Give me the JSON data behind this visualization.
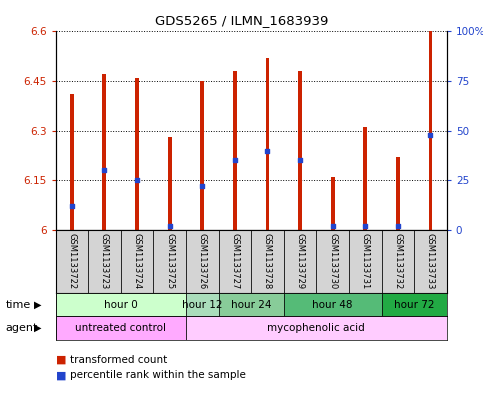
{
  "title": "GDS5265 / ILMN_1683939",
  "samples": [
    "GSM1133722",
    "GSM1133723",
    "GSM1133724",
    "GSM1133725",
    "GSM1133726",
    "GSM1133727",
    "GSM1133728",
    "GSM1133729",
    "GSM1133730",
    "GSM1133731",
    "GSM1133732",
    "GSM1133733"
  ],
  "transformed_counts": [
    6.41,
    6.47,
    6.46,
    6.28,
    6.45,
    6.48,
    6.52,
    6.48,
    6.16,
    6.31,
    6.22,
    6.6
  ],
  "percentile_ranks": [
    12,
    30,
    25,
    2,
    22,
    35,
    40,
    35,
    2,
    2,
    2,
    48
  ],
  "ylim": [
    6.0,
    6.6
  ],
  "yticks": [
    6.0,
    6.15,
    6.3,
    6.45,
    6.6
  ],
  "ytick_labels": [
    "6",
    "6.15",
    "6.3",
    "6.45",
    "6.6"
  ],
  "y2ticks": [
    0,
    25,
    50,
    75,
    100
  ],
  "y2tick_labels": [
    "0",
    "25",
    "50",
    "75",
    "100%"
  ],
  "bar_color": "#cc2200",
  "percentile_color": "#2244cc",
  "bar_width": 0.12,
  "time_groups": [
    {
      "label": "hour 0",
      "samples": [
        0,
        1,
        2,
        3
      ],
      "color": "#ccffcc"
    },
    {
      "label": "hour 12",
      "samples": [
        4
      ],
      "color": "#aaddbb"
    },
    {
      "label": "hour 24",
      "samples": [
        5,
        6
      ],
      "color": "#88cc99"
    },
    {
      "label": "hour 48",
      "samples": [
        7,
        8,
        9
      ],
      "color": "#55bb77"
    },
    {
      "label": "hour 72",
      "samples": [
        10,
        11
      ],
      "color": "#22aa44"
    }
  ],
  "agent_groups": [
    {
      "label": "untreated control",
      "samples": [
        0,
        1,
        2,
        3
      ],
      "color": "#ffaaff"
    },
    {
      "label": "mycophenolic acid",
      "samples": [
        4,
        5,
        6,
        7,
        8,
        9,
        10,
        11
      ],
      "color": "#ffccff"
    }
  ],
  "legend_red_label": "transformed count",
  "legend_blue_label": "percentile rank within the sample",
  "sample_bg_color": "#cccccc",
  "plot_bg": "#ffffff"
}
